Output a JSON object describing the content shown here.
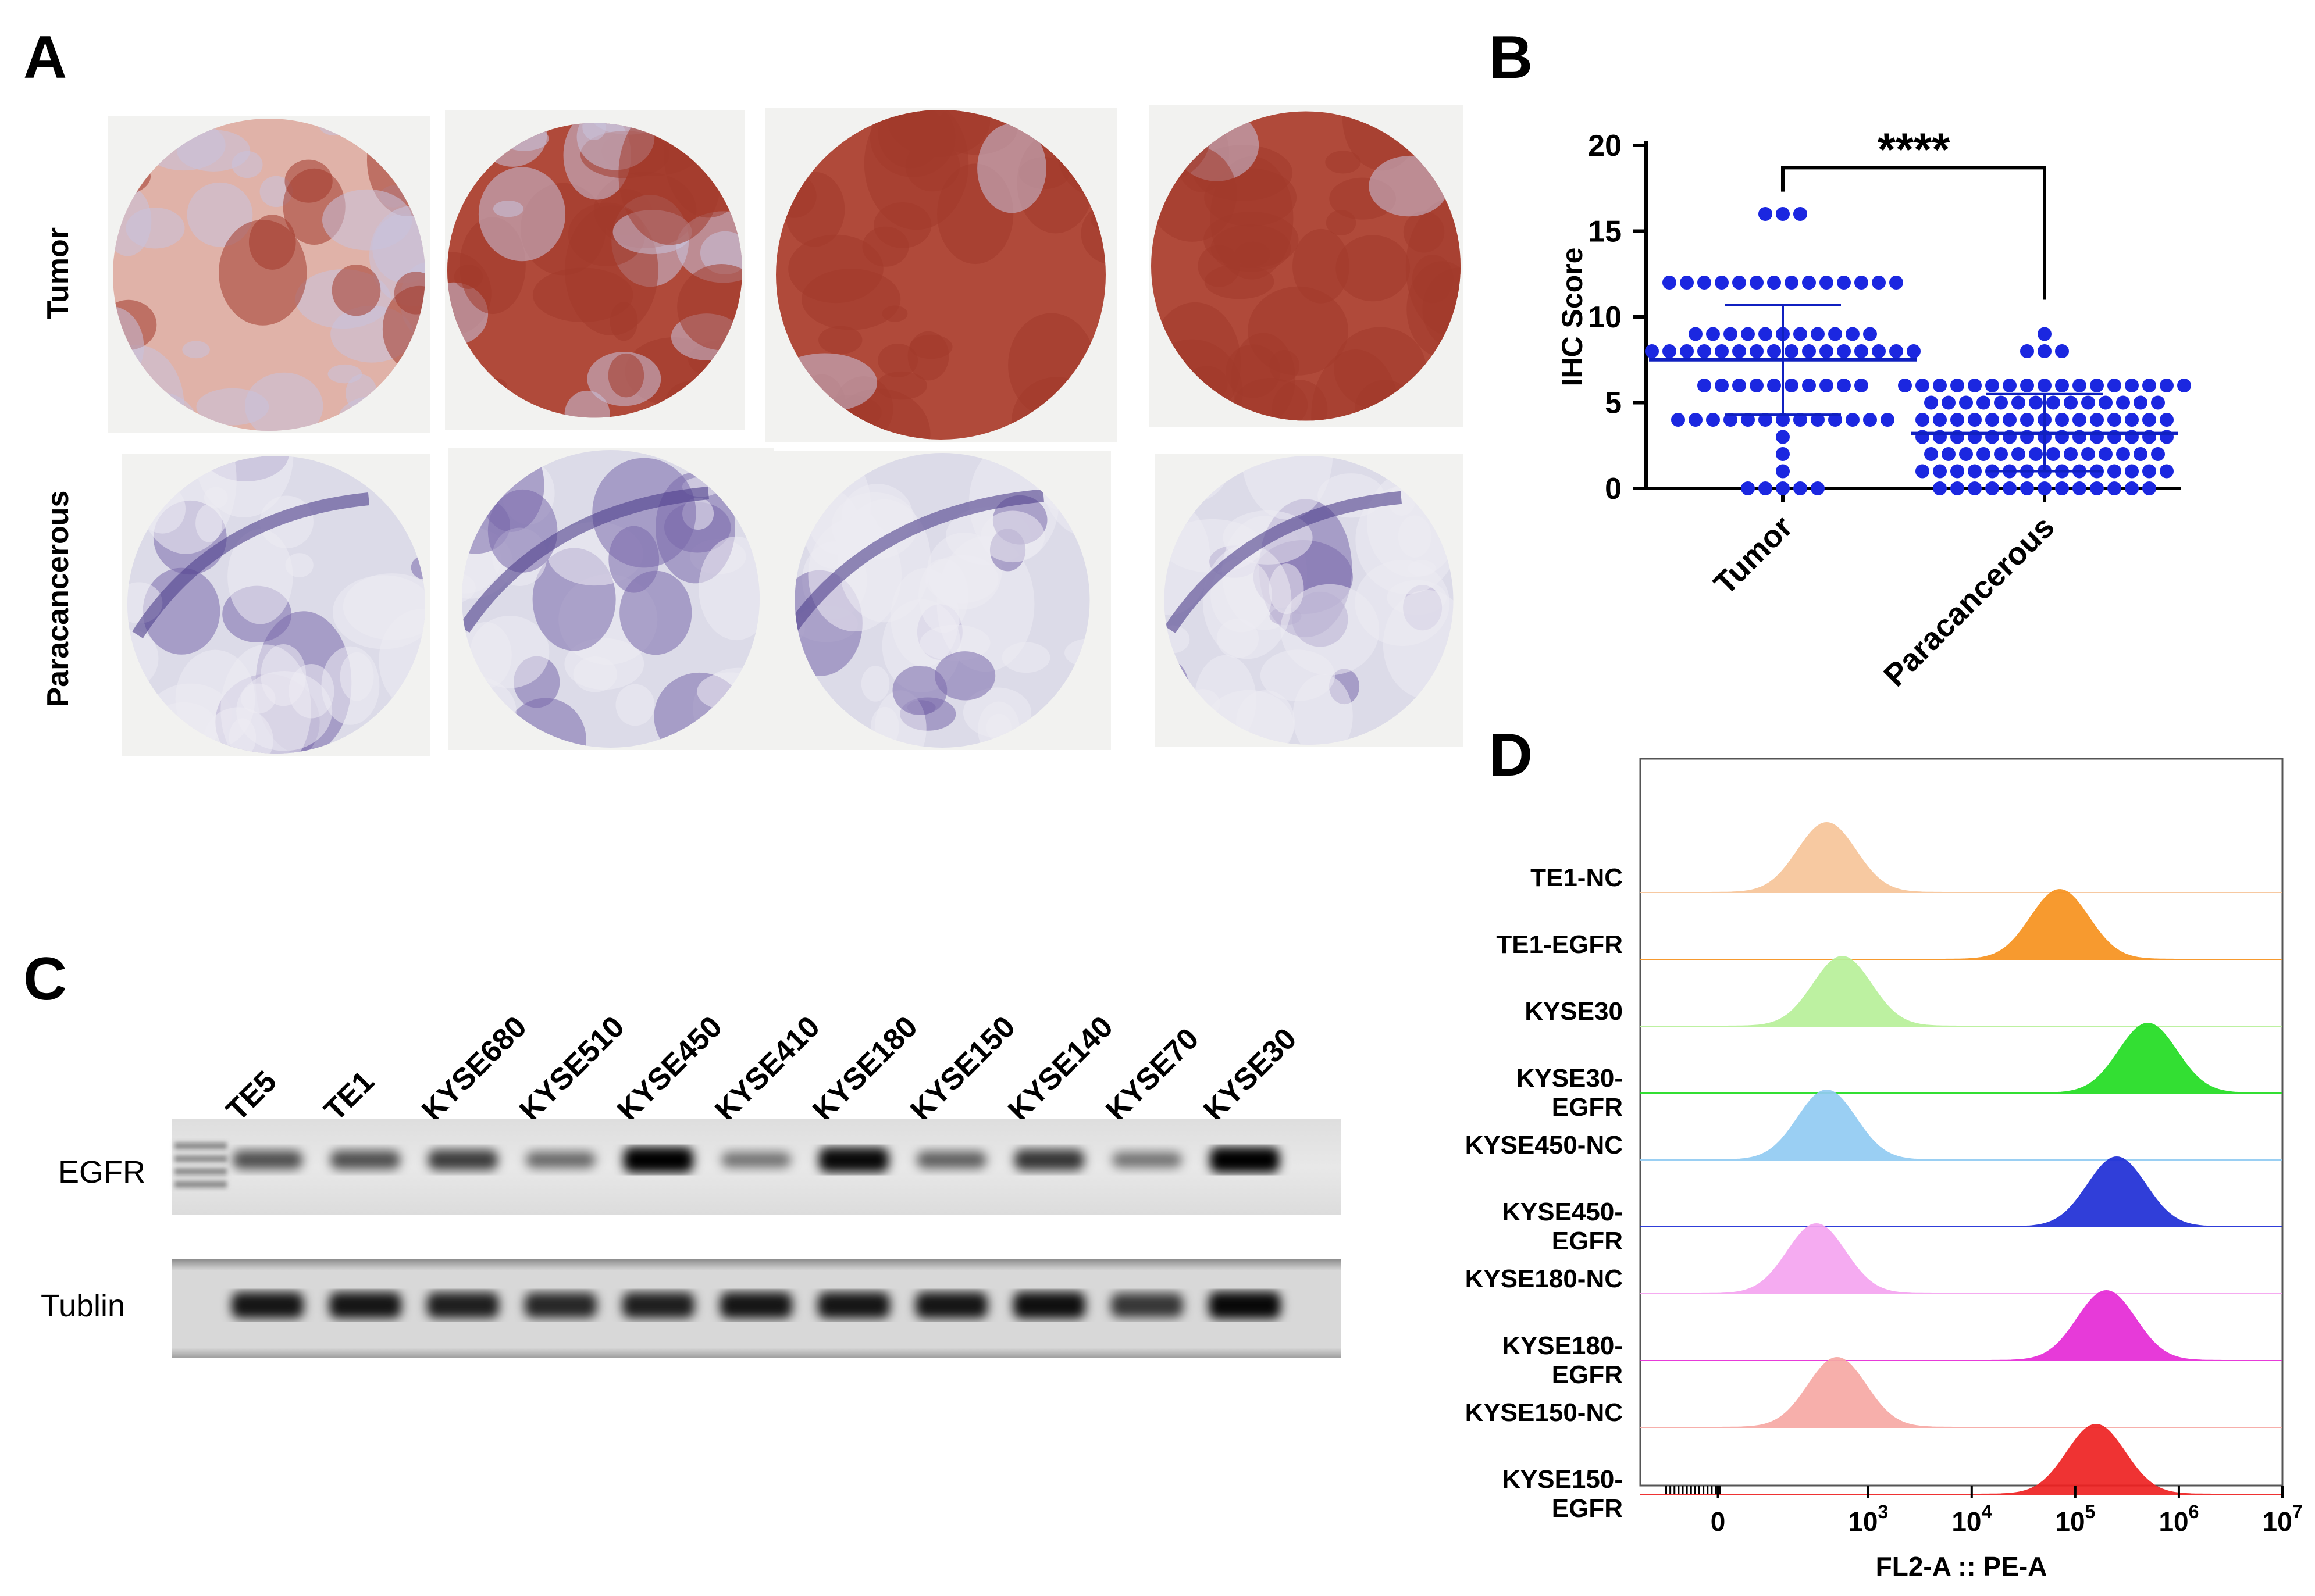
{
  "panels": {
    "A": {
      "letter": "A",
      "row_labels": [
        "Tumor",
        "Paracancerous"
      ]
    },
    "B": {
      "letter": "B",
      "significance": "****"
    },
    "C": {
      "letter": "C",
      "lanes": [
        "TE5",
        "TE1",
        "KYSE680",
        "KYSE510",
        "KYSE450",
        "KYSE410",
        "KYSE180",
        "KYSE150",
        "KYSE140",
        "KYSE70",
        "KYSE30"
      ],
      "bands": [
        {
          "name": "EGFR",
          "intensity": [
            0.55,
            0.55,
            0.65,
            0.4,
            1.0,
            0.35,
            0.95,
            0.45,
            0.7,
            0.35,
            1.0
          ]
        },
        {
          "name": "Tublin",
          "intensity": [
            0.85,
            0.85,
            0.8,
            0.75,
            0.8,
            0.85,
            0.85,
            0.85,
            0.9,
            0.65,
            0.95
          ]
        }
      ]
    },
    "D": {
      "letter": "D",
      "xlabel": "FL2-A :: PE-A",
      "ticks": [
        "0",
        "10",
        "10",
        "10",
        "10",
        "10"
      ],
      "tick_exps": [
        "",
        "3",
        "4",
        "5",
        "6",
        "7"
      ],
      "samples": [
        {
          "name": "TE1-NC",
          "color": "#f7c59a",
          "peak": 2.6
        },
        {
          "name": "TE1-EGFR",
          "color": "#f7921e",
          "peak": 4.85
        },
        {
          "name": "KYSE30",
          "color": "#b8f09a",
          "peak": 2.75
        },
        {
          "name": "KYSE30-EGFR",
          "color": "#22dd22",
          "peak": 5.7
        },
        {
          "name": "KYSE450-NC",
          "color": "#92cbf2",
          "peak": 2.6
        },
        {
          "name": "KYSE450-EGFR",
          "color": "#1f2ed6",
          "peak": 5.4
        },
        {
          "name": "KYSE180-NC",
          "color": "#f5a4f0",
          "peak": 2.5
        },
        {
          "name": "KYSE180-EGFR",
          "color": "#e62ad6",
          "peak": 5.3
        },
        {
          "name": "KYSE150-NC",
          "color": "#f7a9a4",
          "peak": 2.7
        },
        {
          "name": "KYSE150-EGFR",
          "color": "#ee2222",
          "peak": 5.2
        }
      ]
    }
  },
  "chart_data": {
    "type": "scatter",
    "ylabel": "IHC Score",
    "ylim": [
      0,
      20
    ],
    "yticks": [
      0,
      5,
      10,
      15,
      20
    ],
    "categories": [
      "Tumor",
      "Paracancerous"
    ],
    "annotation": "****",
    "series": [
      {
        "name": "Tumor",
        "mean": 7.5,
        "sd_upper": 10.7,
        "sd_lower": 4.3,
        "values": [
          16,
          16,
          16,
          12,
          12,
          12,
          12,
          12,
          12,
          12,
          12,
          12,
          12,
          12,
          12,
          12,
          12,
          9,
          9,
          9,
          9,
          9,
          9,
          9,
          9,
          9,
          9,
          9,
          8,
          8,
          8,
          8,
          8,
          8,
          8,
          8,
          8,
          8,
          8,
          8,
          8,
          8,
          8,
          8,
          6,
          6,
          6,
          6,
          6,
          6,
          6,
          6,
          6,
          6,
          4,
          4,
          4,
          4,
          4,
          4,
          4,
          4,
          4,
          4,
          4,
          4,
          4,
          3,
          2,
          1,
          0,
          0,
          0,
          0,
          0
        ]
      },
      {
        "name": "Paracancerous",
        "mean": 3.2,
        "sd_upper": 5.5,
        "sd_lower": 1.0,
        "values": [
          9,
          8,
          8,
          8,
          6,
          6,
          6,
          6,
          6,
          6,
          6,
          6,
          6,
          6,
          6,
          6,
          6,
          6,
          6,
          6,
          6,
          5,
          5,
          5,
          5,
          5,
          5,
          5,
          5,
          5,
          5,
          5,
          5,
          5,
          5,
          4,
          4,
          4,
          4,
          4,
          4,
          4,
          4,
          4,
          4,
          4,
          4,
          4,
          4,
          4,
          3,
          3,
          3,
          3,
          3,
          3,
          3,
          3,
          3,
          3,
          3,
          3,
          3,
          3,
          3,
          2,
          2,
          2,
          2,
          2,
          2,
          2,
          2,
          2,
          2,
          2,
          2,
          2,
          2,
          1,
          1,
          1,
          1,
          1,
          1,
          1,
          1,
          1,
          1,
          1,
          1,
          1,
          1,
          1,
          0,
          0,
          0,
          0,
          0,
          0,
          0,
          0,
          0,
          0,
          0,
          0,
          0
        ]
      }
    ]
  }
}
